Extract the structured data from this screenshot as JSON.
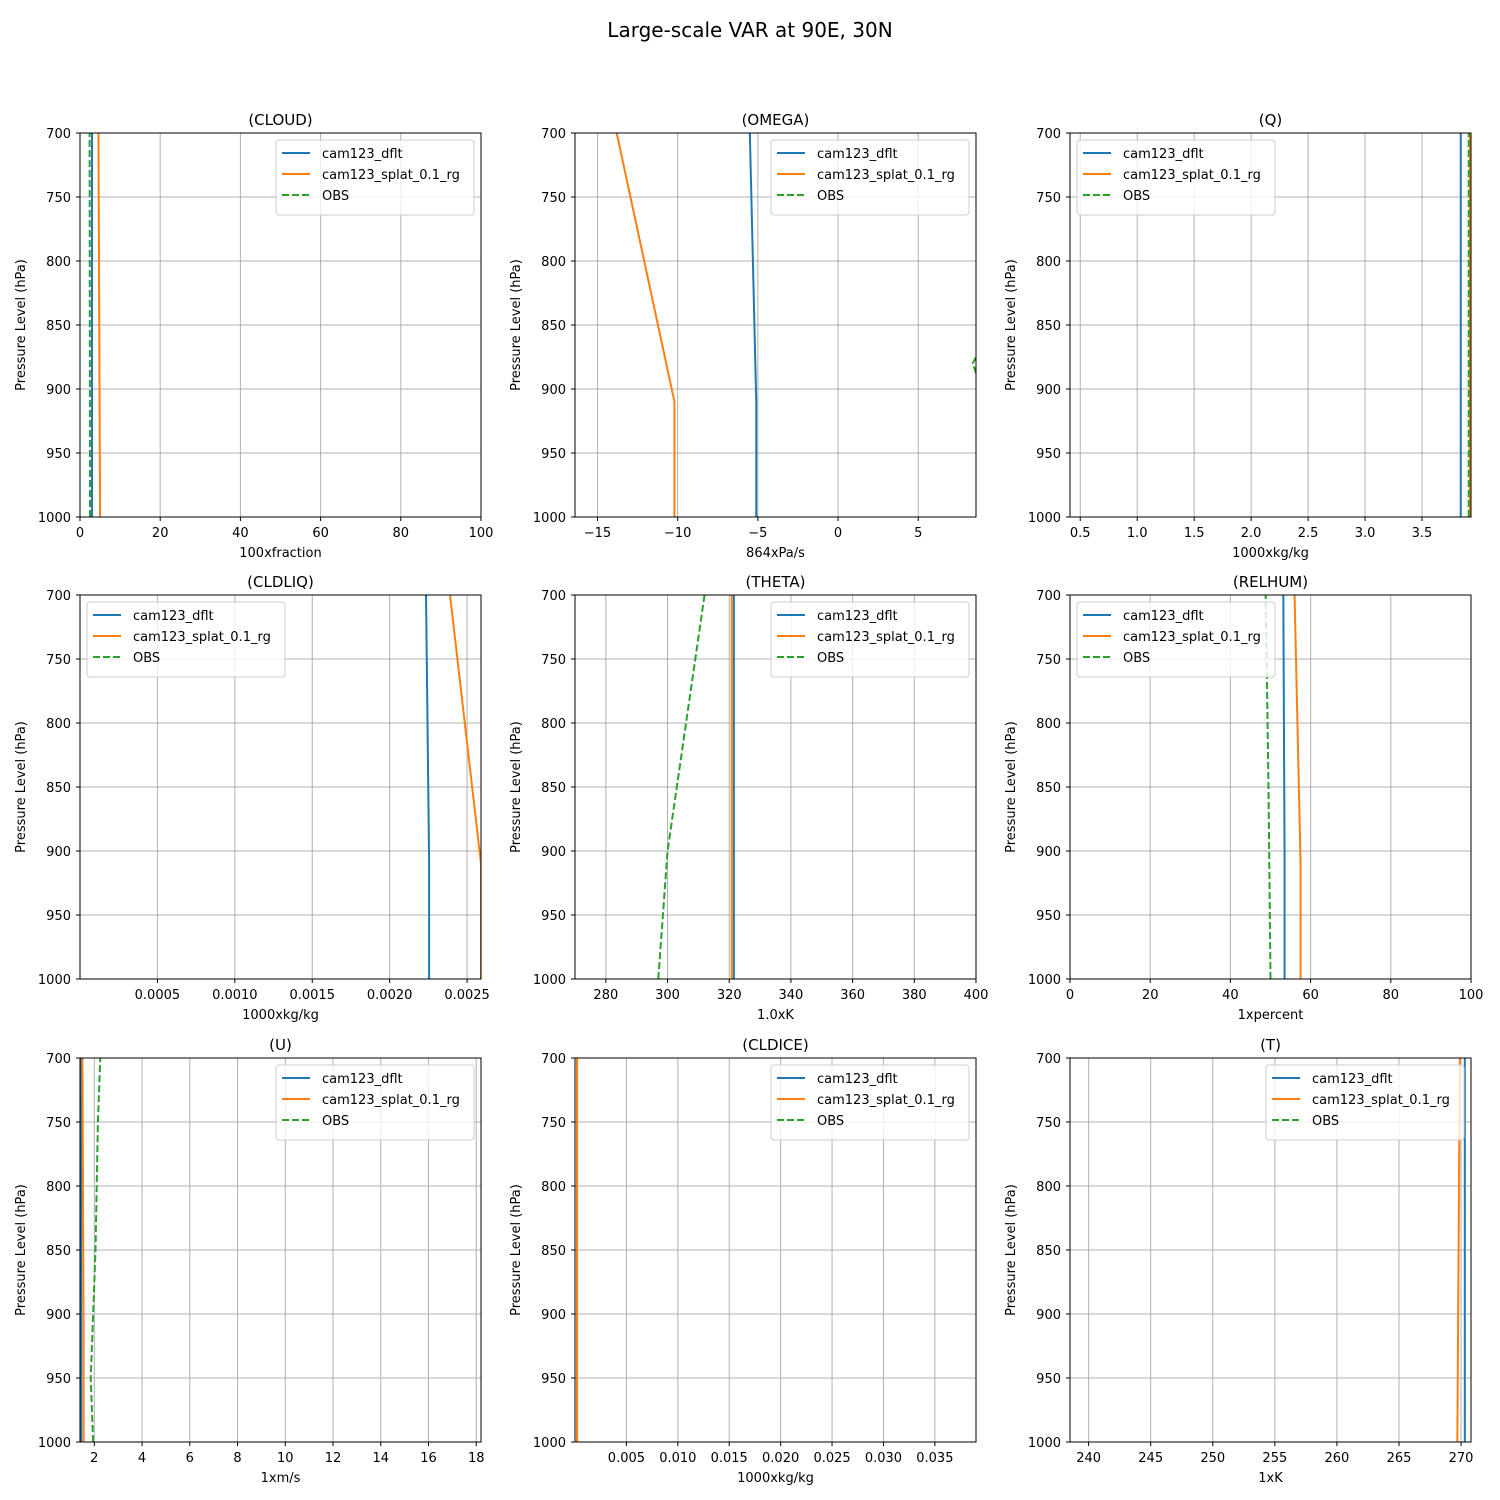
{
  "figure": {
    "title": "Large-scale VAR at 90E, 30N"
  },
  "colors": {
    "cam123_dflt": "#1f77b4",
    "cam123_splat_0.1_rg": "#ff7f0e",
    "OBS": "#2ca02c",
    "grid": "#b0b0b0"
  },
  "chart_data": [
    {
      "type": "line",
      "title": "(CLOUD)",
      "xlabel": "100xfraction",
      "ylabel": "Pressure Level (hPa)",
      "xlim": [
        0,
        100
      ],
      "ylim": [
        1000,
        700
      ],
      "xticks": [
        0,
        20,
        40,
        60,
        80,
        100
      ],
      "xtick_labels": [
        "0",
        "20",
        "40",
        "60",
        "80",
        "100"
      ],
      "yticks": [
        700,
        750,
        800,
        850,
        900,
        950,
        1000
      ],
      "grid": true,
      "legend": "upper right",
      "series": [
        {
          "name": "cam123_dflt",
          "style": "solid",
          "points": [
            [
              3.0,
              1000
            ],
            [
              3.0,
              700
            ]
          ]
        },
        {
          "name": "cam123_splat_0.1_rg",
          "style": "solid",
          "points": [
            [
              5.0,
              1000
            ],
            [
              4.6,
              700
            ]
          ]
        },
        {
          "name": "OBS",
          "style": "dashed",
          "points": [
            [
              2.5,
              1000
            ],
            [
              2.4,
              700
            ]
          ]
        }
      ]
    },
    {
      "type": "line",
      "title": "(OMEGA)",
      "xlabel": "864xPa/s",
      "ylabel": "Pressure Level (hPa)",
      "xlim": [
        -16.4,
        8.6
      ],
      "ylim": [
        1000,
        700
      ],
      "xticks": [
        -15,
        -10,
        -5,
        0,
        5
      ],
      "xtick_labels": [
        "−15",
        "−10",
        "−5",
        "0",
        "5"
      ],
      "yticks": [
        700,
        750,
        800,
        850,
        900,
        950,
        1000
      ],
      "grid": true,
      "legend": "upper right",
      "series": [
        {
          "name": "cam123_dflt",
          "style": "solid",
          "points": [
            [
              -5.1,
              1000
            ],
            [
              -5.1,
              910
            ],
            [
              -5.5,
              700
            ]
          ]
        },
        {
          "name": "cam123_splat_0.1_rg",
          "style": "solid",
          "points": [
            [
              -10.2,
              1000
            ],
            [
              -10.2,
              910
            ],
            [
              -13.8,
              700
            ]
          ]
        },
        {
          "name": "OBS",
          "style": "dashed",
          "points": [
            [
              8.8,
              895
            ],
            [
              8.4,
              880
            ],
            [
              8.6,
              875
            ],
            [
              8.8,
              872
            ]
          ]
        }
      ]
    },
    {
      "type": "line",
      "title": "(Q)",
      "xlabel": "1000xkg/kg",
      "ylabel": "Pressure Level (hPa)",
      "xlim": [
        0.41,
        3.93
      ],
      "ylim": [
        1000,
        700
      ],
      "xticks": [
        0.5,
        1.0,
        1.5,
        2.0,
        2.5,
        3.0,
        3.5
      ],
      "xtick_labels": [
        "0.5",
        "1.0",
        "1.5",
        "2.0",
        "2.5",
        "3.0",
        "3.5"
      ],
      "yticks": [
        700,
        750,
        800,
        850,
        900,
        950,
        1000
      ],
      "grid": true,
      "legend": "upper left",
      "series": [
        {
          "name": "cam123_dflt",
          "style": "solid",
          "points": [
            [
              3.84,
              1000
            ],
            [
              3.84,
              700
            ]
          ]
        },
        {
          "name": "cam123_splat_0.1_rg",
          "style": "solid",
          "points": [
            [
              3.92,
              1000
            ],
            [
              3.92,
              700
            ]
          ]
        },
        {
          "name": "OBS",
          "style": "dashed",
          "points": [
            [
              3.91,
              1000
            ],
            [
              3.91,
              700
            ]
          ]
        }
      ]
    },
    {
      "type": "line",
      "title": "(CLDLIQ)",
      "xlabel": "1000xkg/kg",
      "ylabel": "Pressure Level (hPa)",
      "xlim": [
        0.0,
        0.00259
      ],
      "ylim": [
        1000,
        700
      ],
      "xticks": [
        0.0005,
        0.001,
        0.0015,
        0.002,
        0.0025
      ],
      "xtick_labels": [
        "0.0005",
        "0.0010",
        "0.0015",
        "0.0020",
        "0.0025"
      ],
      "yticks": [
        700,
        750,
        800,
        850,
        900,
        950,
        1000
      ],
      "grid": true,
      "legend": "upper left",
      "series": [
        {
          "name": "cam123_dflt",
          "style": "solid",
          "points": [
            [
              0.002255,
              1000
            ],
            [
              0.002255,
              910
            ],
            [
              0.002235,
              700
            ]
          ]
        },
        {
          "name": "cam123_splat_0.1_rg",
          "style": "solid",
          "points": [
            [
              0.00259,
              1000
            ],
            [
              0.00259,
              910
            ],
            [
              0.00239,
              700
            ]
          ]
        },
        {
          "name": "OBS",
          "style": "dashed",
          "points": []
        }
      ]
    },
    {
      "type": "line",
      "title": "(THETA)",
      "xlabel": "1.0xK",
      "ylabel": "Pressure Level (hPa)",
      "xlim": [
        270,
        400
      ],
      "ylim": [
        1000,
        700
      ],
      "xticks": [
        280,
        300,
        320,
        340,
        360,
        380,
        400
      ],
      "xtick_labels": [
        "280",
        "300",
        "320",
        "340",
        "360",
        "380",
        "400"
      ],
      "yticks": [
        700,
        750,
        800,
        850,
        900,
        950,
        1000
      ],
      "grid": true,
      "legend": "upper right",
      "series": [
        {
          "name": "cam123_dflt",
          "style": "solid",
          "points": [
            [
              321.5,
              1000
            ],
            [
              321.5,
              700
            ]
          ]
        },
        {
          "name": "cam123_splat_0.1_rg",
          "style": "solid",
          "points": [
            [
              320.8,
              1000
            ],
            [
              320.8,
              700
            ]
          ]
        },
        {
          "name": "OBS",
          "style": "dashed",
          "points": [
            [
              297,
              1000
            ],
            [
              300,
              900
            ],
            [
              306,
              800
            ],
            [
              312,
              700
            ]
          ]
        }
      ]
    },
    {
      "type": "line",
      "title": "(RELHUM)",
      "xlabel": "1xpercent",
      "ylabel": "Pressure Level (hPa)",
      "xlim": [
        0,
        100
      ],
      "ylim": [
        1000,
        700
      ],
      "xticks": [
        0,
        20,
        40,
        60,
        80,
        100
      ],
      "xtick_labels": [
        "0",
        "20",
        "40",
        "60",
        "80",
        "100"
      ],
      "yticks": [
        700,
        750,
        800,
        850,
        900,
        950,
        1000
      ],
      "grid": true,
      "legend": "upper left",
      "series": [
        {
          "name": "cam123_dflt",
          "style": "solid",
          "points": [
            [
              53.5,
              1000
            ],
            [
              53.5,
              900
            ],
            [
              53.2,
              700
            ]
          ]
        },
        {
          "name": "cam123_splat_0.1_rg",
          "style": "solid",
          "points": [
            [
              57.5,
              1000
            ],
            [
              57.5,
              910
            ],
            [
              56,
              700
            ]
          ]
        },
        {
          "name": "OBS",
          "style": "dashed",
          "points": [
            [
              50,
              1000
            ],
            [
              49.5,
              850
            ],
            [
              48.8,
              700
            ]
          ]
        }
      ]
    },
    {
      "type": "line",
      "title": "(U)",
      "xlabel": "1xm/s",
      "ylabel": "Pressure Level (hPa)",
      "xlim": [
        1.4,
        18.2
      ],
      "ylim": [
        1000,
        700
      ],
      "xticks": [
        2,
        4,
        6,
        8,
        10,
        12,
        14,
        16,
        18
      ],
      "xtick_labels": [
        "2",
        "4",
        "6",
        "8",
        "10",
        "12",
        "14",
        "16",
        "18"
      ],
      "yticks": [
        700,
        750,
        800,
        850,
        900,
        950,
        1000
      ],
      "grid": true,
      "legend": "upper right",
      "series": [
        {
          "name": "cam123_dflt",
          "style": "solid",
          "points": [
            [
              1.45,
              1000
            ],
            [
              1.45,
              700
            ]
          ]
        },
        {
          "name": "cam123_splat_0.1_rg",
          "style": "solid",
          "points": [
            [
              1.55,
              1000
            ],
            [
              1.55,
              910
            ],
            [
              1.5,
              700
            ]
          ]
        },
        {
          "name": "OBS",
          "style": "dashed",
          "points": [
            [
              1.95,
              1000
            ],
            [
              1.85,
              950
            ],
            [
              1.95,
              900
            ],
            [
              2.05,
              850
            ],
            [
              2.15,
              750
            ],
            [
              2.25,
              700
            ]
          ]
        }
      ]
    },
    {
      "type": "line",
      "title": "(CLDICE)",
      "xlabel": "1000xkg/kg",
      "ylabel": "Pressure Level (hPa)",
      "xlim": [
        0.0,
        0.039
      ],
      "ylim": [
        1000,
        700
      ],
      "xticks": [
        0.005,
        0.01,
        0.015,
        0.02,
        0.025,
        0.03,
        0.035
      ],
      "xtick_labels": [
        "0.005",
        "0.010",
        "0.015",
        "0.020",
        "0.025",
        "0.030",
        "0.035"
      ],
      "yticks": [
        700,
        750,
        800,
        850,
        900,
        950,
        1000
      ],
      "grid": true,
      "legend": "upper right",
      "series": [
        {
          "name": "cam123_dflt",
          "style": "solid",
          "points": [
            [
              0.0002,
              1000
            ],
            [
              0.0002,
              700
            ]
          ]
        },
        {
          "name": "cam123_splat_0.1_rg",
          "style": "solid",
          "points": [
            [
              0.0002,
              1000
            ],
            [
              0.0002,
              700
            ]
          ]
        },
        {
          "name": "OBS",
          "style": "dashed",
          "points": []
        }
      ]
    },
    {
      "type": "line",
      "title": "(T)",
      "xlabel": "1xK",
      "ylabel": "Pressure Level (hPa)",
      "xlim": [
        238.5,
        270.8
      ],
      "ylim": [
        1000,
        700
      ],
      "xticks": [
        240,
        245,
        250,
        255,
        260,
        265,
        270
      ],
      "xtick_labels": [
        "240",
        "245",
        "250",
        "255",
        "260",
        "265",
        "270"
      ],
      "yticks": [
        700,
        750,
        800,
        850,
        900,
        950,
        1000
      ],
      "grid": true,
      "legend": "upper right",
      "series": [
        {
          "name": "cam123_dflt",
          "style": "solid",
          "points": [
            [
              270.3,
              1000
            ],
            [
              270.3,
              700
            ]
          ]
        },
        {
          "name": "cam123_splat_0.1_rg",
          "style": "solid",
          "points": [
            [
              269.7,
              1000
            ],
            [
              269.8,
              850
            ],
            [
              269.9,
              700
            ]
          ]
        },
        {
          "name": "OBS",
          "style": "dashed",
          "points": []
        }
      ]
    }
  ]
}
